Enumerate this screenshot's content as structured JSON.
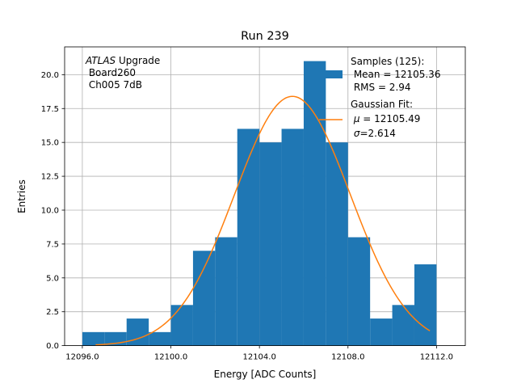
{
  "chart_data": {
    "type": "bar",
    "title": "Run 239",
    "xlabel": "Energy [ADC Counts]",
    "ylabel": "Entries",
    "xlim": [
      12095.2,
      12113.3
    ],
    "ylim": [
      0,
      22.05
    ],
    "xticks": [
      12096.0,
      12100.0,
      12104.0,
      12108.0,
      12112.0
    ],
    "xtick_labels": [
      "12096.0",
      "12100.0",
      "12104.0",
      "12108.0",
      "12112.0"
    ],
    "yticks": [
      0,
      2.5,
      5,
      7.5,
      10,
      12.5,
      15,
      17.5,
      20
    ],
    "ytick_labels": [
      "0.0",
      "2.5",
      "5.0",
      "7.5",
      "10.0",
      "12.5",
      "15.0",
      "17.5",
      "20.0"
    ],
    "grid": true,
    "legend_position": "top-right",
    "bins": {
      "edges": [
        12096.0,
        12097.0,
        12098.0,
        12099.0,
        12100.0,
        12101.0,
        12102.0,
        12103.0,
        12104.0,
        12105.0,
        12106.0,
        12107.0,
        12108.0,
        12109.0,
        12110.0,
        12111.0,
        12112.0
      ],
      "counts": [
        1,
        1,
        2,
        1,
        3,
        7,
        8,
        16,
        15,
        16,
        21,
        15,
        8,
        2,
        3,
        6
      ],
      "color": "#1f77b4"
    },
    "fit": {
      "mu": 12105.49,
      "sigma": 2.614,
      "amplitude": 18.4,
      "x_range": [
        12096.6,
        12111.7
      ],
      "color": "#ff7f0e"
    },
    "annotation": {
      "italic": "ATLAS",
      "rest": " Upgrade",
      "line2": " Board260",
      "line3": " Ch005 7dB"
    },
    "legend": {
      "samples_line1": "Samples (125):",
      "samples_line2": " Mean = 12105.36",
      "samples_line3": " RMS = 2.94",
      "fit_line1": "Gaussian Fit:",
      "fit_mu_symbol": "μ",
      "fit_mu_rest": " = 12105.49",
      "fit_sigma_symbol": "σ",
      "fit_sigma_rest": "=2.614"
    }
  }
}
